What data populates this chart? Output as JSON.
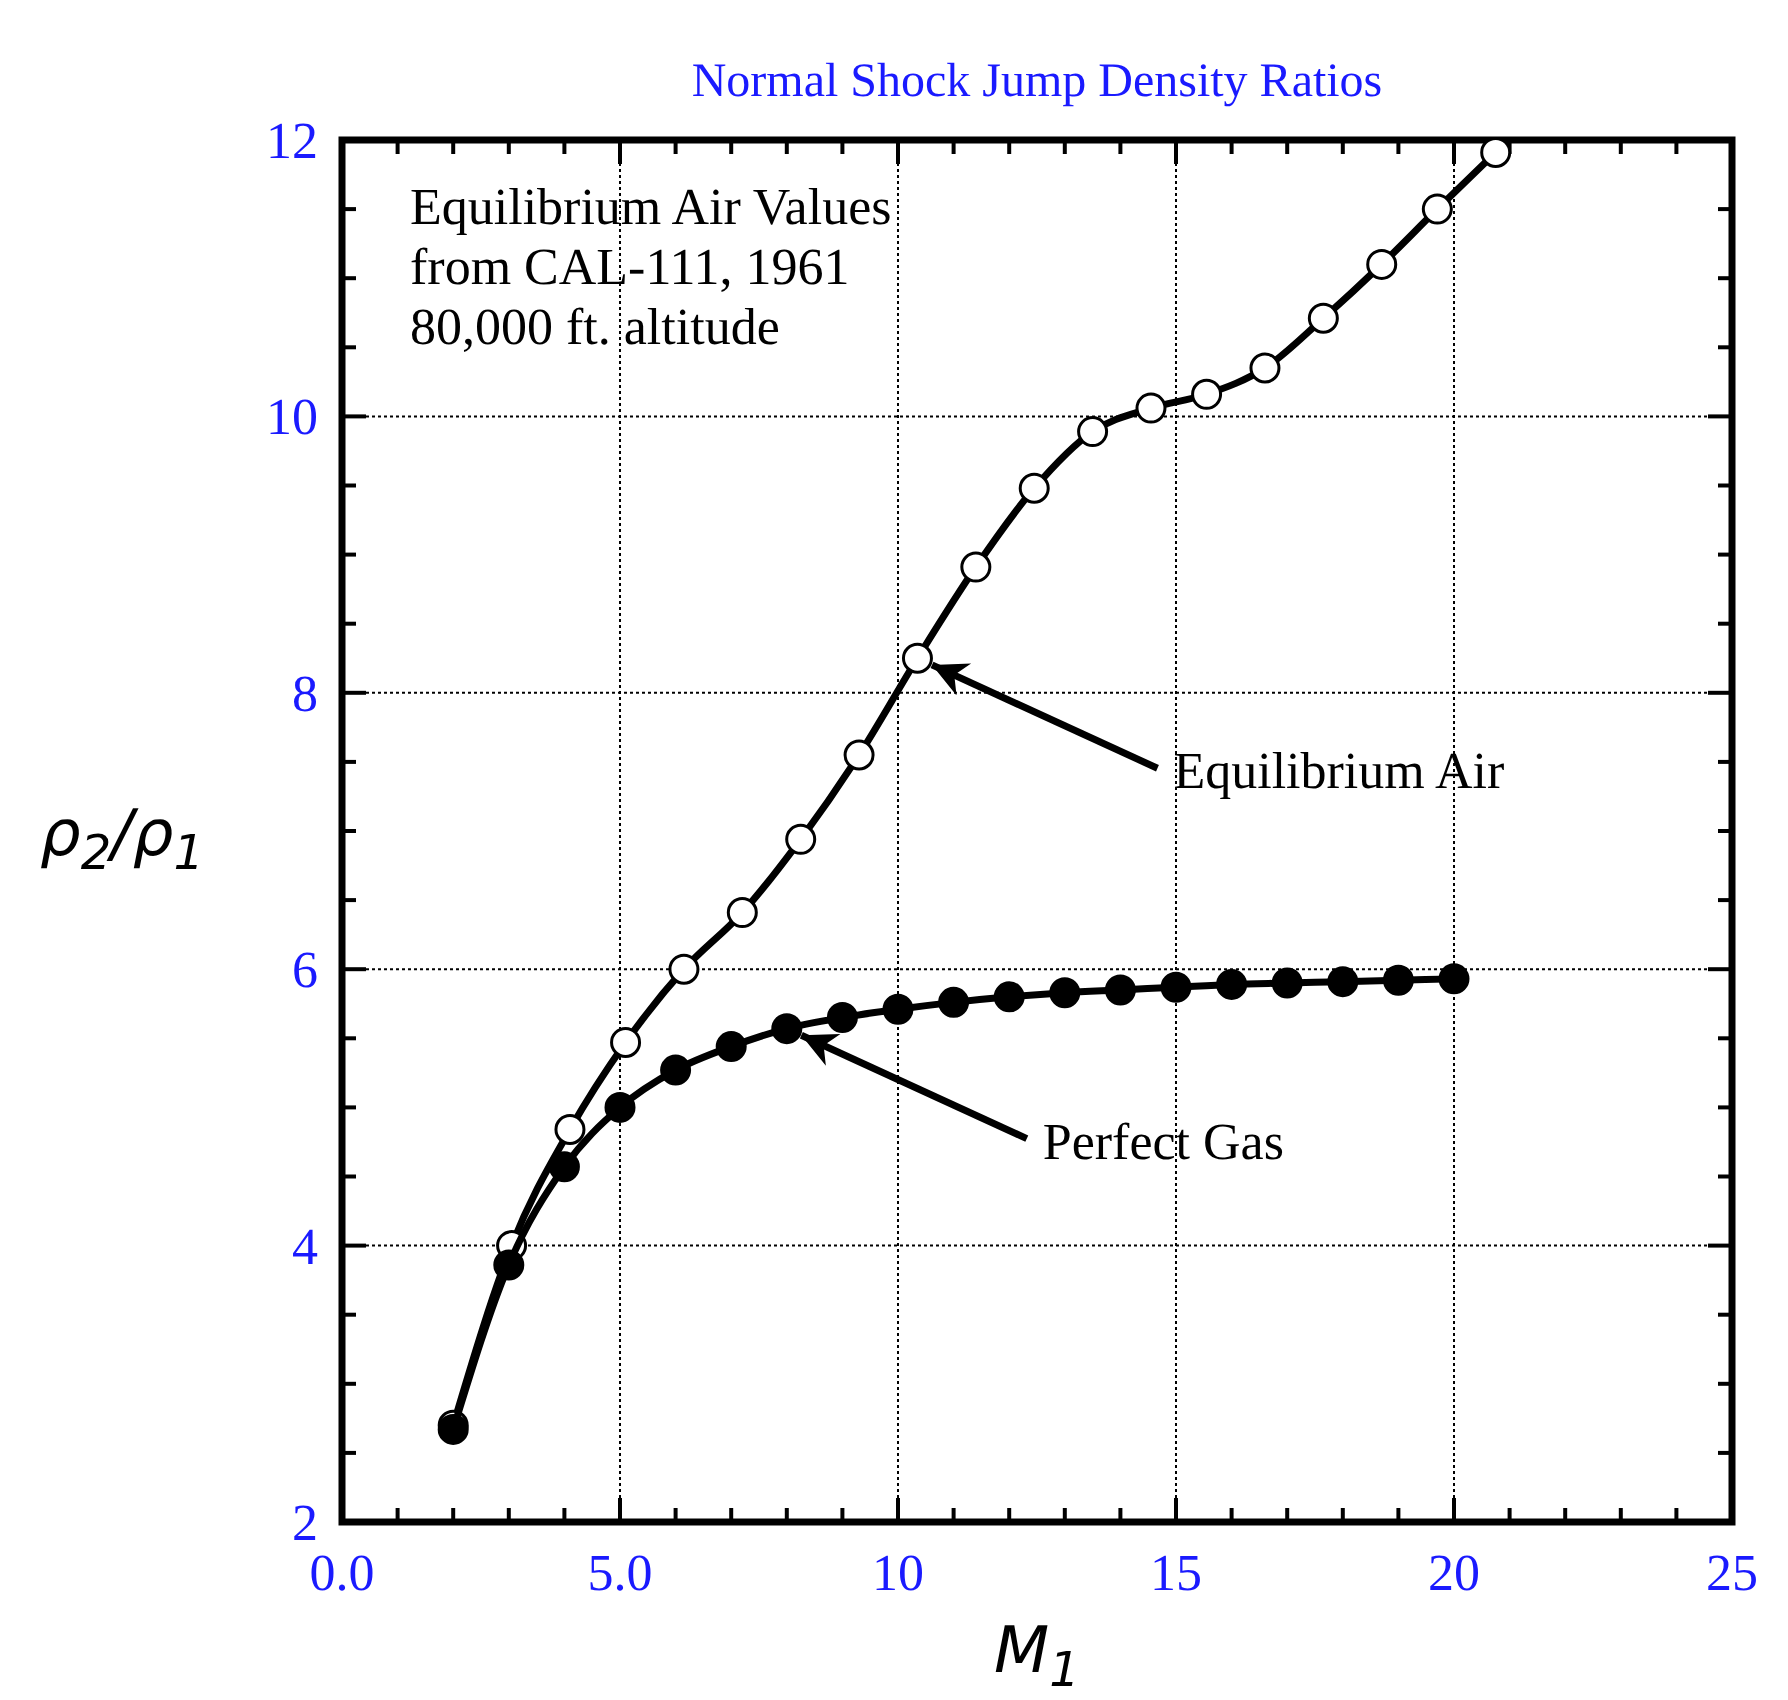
{
  "chart_data": {
    "type": "line",
    "title": "Normal Shock Jump Density Ratios",
    "xlabel": "M$_{1}$",
    "ylabel": "ρ$_{2}$/ρ$_{1}$",
    "xlim": [
      0,
      25
    ],
    "ylim": [
      2,
      12
    ],
    "xticks": [
      {
        "value": 0,
        "label": "0.0"
      },
      {
        "value": 1,
        "label": null
      },
      {
        "value": 2,
        "label": null
      },
      {
        "value": 3,
        "label": null
      },
      {
        "value": 4,
        "label": null
      },
      {
        "value": 5,
        "label": "5.0"
      },
      {
        "value": 6,
        "label": null
      },
      {
        "value": 7,
        "label": null
      },
      {
        "value": 8,
        "label": null
      },
      {
        "value": 9,
        "label": null
      },
      10,
      {
        "value": 11,
        "label": null
      },
      {
        "value": 12,
        "label": null
      },
      {
        "value": 13,
        "label": null
      },
      {
        "value": 14,
        "label": null
      },
      15,
      {
        "value": 16,
        "label": null
      },
      {
        "value": 17,
        "label": null
      },
      {
        "value": 18,
        "label": null
      },
      {
        "value": 19,
        "label": null
      },
      20,
      {
        "value": 21,
        "label": null
      },
      {
        "value": 22,
        "label": null
      },
      {
        "value": 23,
        "label": null
      },
      {
        "value": 24,
        "label": null
      },
      25
    ],
    "yticks": [
      2,
      {
        "value": 2.5,
        "label": null
      },
      {
        "value": 3,
        "label": null
      },
      {
        "value": 3.5,
        "label": null
      },
      4,
      {
        "value": 4.5,
        "label": null
      },
      {
        "value": 5,
        "label": null
      },
      {
        "value": 5.5,
        "label": null
      },
      6,
      {
        "value": 6.5,
        "label": null
      },
      {
        "value": 7,
        "label": null
      },
      {
        "value": 7.5,
        "label": null
      },
      8,
      {
        "value": 8.5,
        "label": null
      },
      {
        "value": 9,
        "label": null
      },
      {
        "value": 9.5,
        "label": null
      },
      10,
      {
        "value": 10.5,
        "label": null
      },
      {
        "value": 11,
        "label": null
      },
      {
        "value": 11.5,
        "label": null
      },
      12
    ],
    "grid": true,
    "marker": "circle",
    "line_style": "solid",
    "series": [
      {
        "color": "#000000",
        "colors": [
          "#ffffff",
          "#ffffff",
          "#ffffff",
          "#ffffff",
          "#ffffff",
          "#ffffff",
          "#ffffff",
          "#ffffff",
          "#ffffff",
          "#ffffff",
          "#ffffff",
          "#ffffff",
          "#ffffff",
          "#ffffff",
          "#ffffff",
          "#ffffff",
          "#ffffff",
          "#ffffff",
          "#ffffff"
        ],
        "x": [
          2.0,
          3.05,
          4.1,
          5.1,
          6.15,
          7.2,
          8.25,
          9.3,
          10.35,
          11.4,
          12.45,
          13.5,
          14.55,
          15.55,
          16.6,
          17.65,
          18.7,
          19.7,
          20.75
        ],
        "values": [
          2.7,
          4.0,
          4.84,
          5.47,
          6.0,
          6.41,
          6.94,
          7.55,
          8.25,
          8.91,
          9.48,
          9.89,
          10.06,
          10.16,
          10.35,
          10.71,
          11.1,
          11.5,
          11.91
        ]
      },
      {
        "color": "#000000",
        "x": [
          2,
          3,
          4,
          5,
          6,
          7,
          8,
          9,
          10,
          11,
          12,
          13,
          14,
          15,
          16,
          17,
          18,
          19,
          20
        ],
        "values": [
          2.67,
          3.86,
          4.57,
          5.0,
          5.27,
          5.44,
          5.57,
          5.65,
          5.71,
          5.76,
          5.8,
          5.83,
          5.85,
          5.87,
          5.89,
          5.9,
          5.91,
          5.92,
          5.93
        ]
      }
    ],
    "annotations": [
      "Equilibrium Air Values\nfrom CAL-111, 1961\n80,000 ft. altitude",
      {
        "text": "Equilibrium Air",
        "x": 10.35,
        "y": 8.25
      },
      {
        "text": "Perfect Gas",
        "x": 8,
        "y": 5.57
      }
    ]
  }
}
